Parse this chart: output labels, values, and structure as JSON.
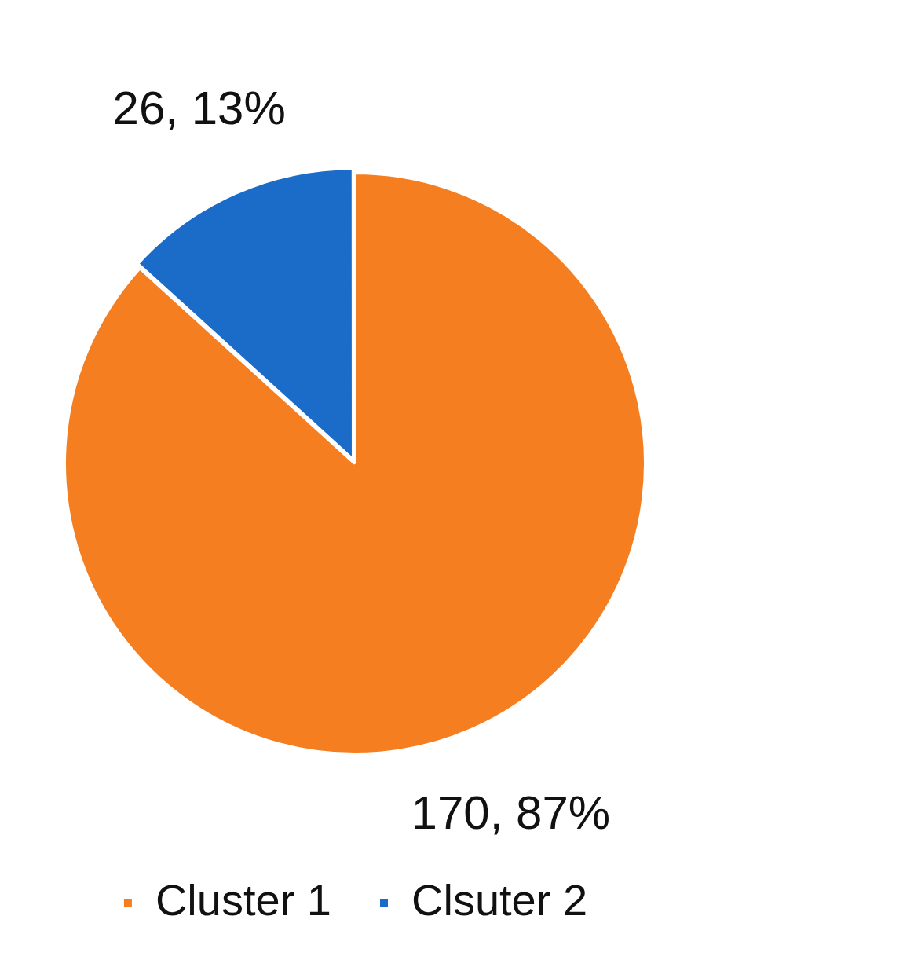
{
  "chart_data": {
    "type": "pie",
    "categories": [
      "Cluster 1",
      "Clsuter 2"
    ],
    "values": [
      170,
      26
    ],
    "value_labels": [
      "170, 87%",
      "26, 13%"
    ],
    "colors": [
      "#f57e20",
      "#1b6cc8"
    ],
    "legend": "bottom"
  }
}
